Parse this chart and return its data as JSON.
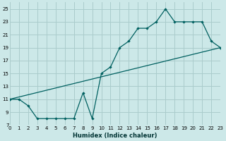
{
  "xlabel": "Humidex (Indice chaleur)",
  "bg_color": "#cce8e8",
  "grid_color": "#aacccc",
  "line_color": "#006060",
  "line_upper": {
    "x": [
      0,
      1,
      2,
      3,
      4,
      5,
      6,
      7,
      8,
      9,
      10,
      11,
      12,
      13,
      14,
      15,
      16,
      17,
      18,
      19,
      20,
      21,
      22,
      23
    ],
    "y": [
      11,
      11,
      10,
      8,
      8,
      8,
      8,
      8,
      12,
      8,
      15,
      16,
      19,
      20,
      22,
      22,
      23,
      25,
      23,
      23,
      23,
      23,
      20,
      19
    ]
  },
  "line_lower": {
    "x": [
      0,
      23
    ],
    "y": [
      11,
      19
    ]
  },
  "xlim": [
    0,
    23
  ],
  "ylim": [
    7,
    26
  ],
  "yticks": [
    7,
    9,
    11,
    13,
    15,
    17,
    19,
    21,
    23,
    25
  ],
  "xticks": [
    0,
    1,
    2,
    3,
    4,
    5,
    6,
    7,
    8,
    9,
    10,
    11,
    12,
    13,
    14,
    15,
    16,
    17,
    18,
    19,
    20,
    21,
    22,
    23
  ]
}
